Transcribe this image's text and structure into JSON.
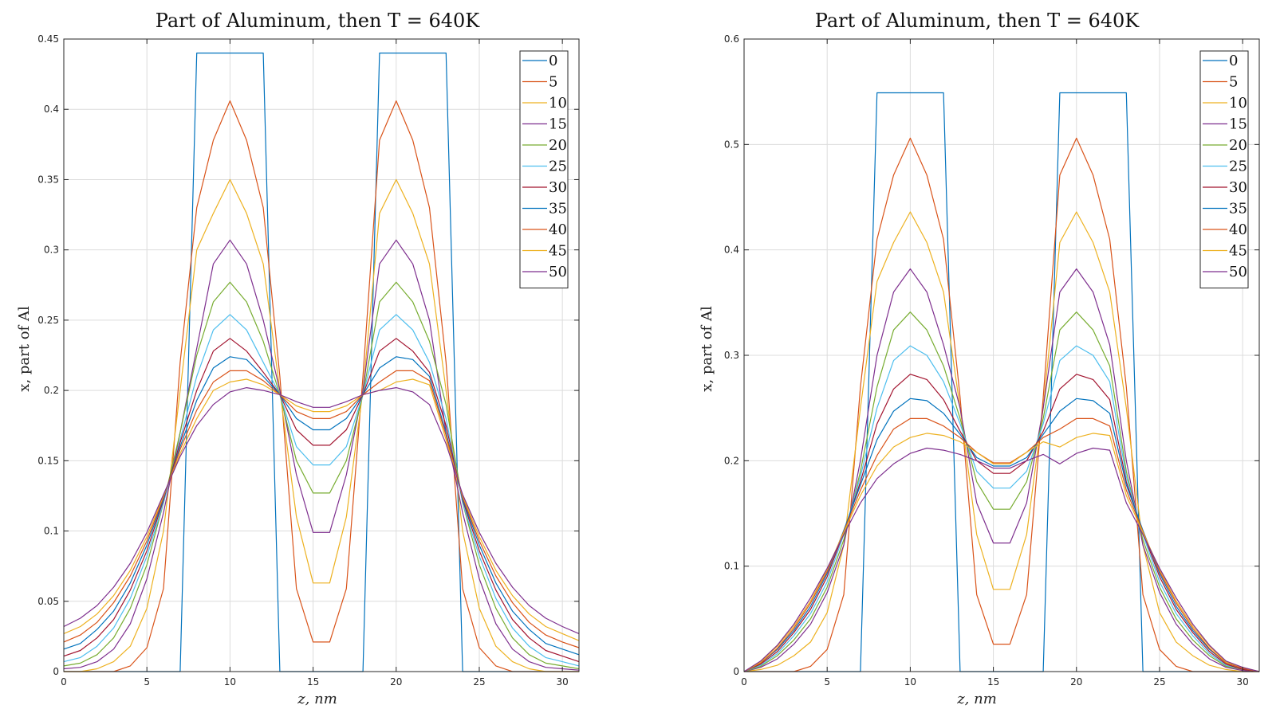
{
  "colors": [
    "#0072BD",
    "#D95319",
    "#EDB120",
    "#7E2F8E",
    "#77AC30",
    "#4DBEEE",
    "#A2142F",
    "#0072BD",
    "#D95319",
    "#EDB120",
    "#7E2F8E"
  ],
  "chart_data": [
    {
      "type": "line",
      "title": "Part of Aluminum, then T = 640K",
      "xlabel": "z, nm",
      "ylabel": "x, part of Al",
      "xlim": [
        0,
        31
      ],
      "ylim": [
        0,
        0.45
      ],
      "xticks": [
        "0",
        "5",
        "10",
        "15",
        "20",
        "25",
        "30"
      ],
      "yticks": [
        "0",
        "0.05",
        "0.1",
        "0.15",
        "0.2",
        "0.25",
        "0.3",
        "0.35",
        "0.4",
        "0.45"
      ],
      "grid": true,
      "legend_position": "top-right",
      "x": [
        0,
        1,
        2,
        3,
        4,
        5,
        6,
        7,
        8,
        9,
        10,
        11,
        12,
        13,
        14,
        15,
        16,
        17,
        18,
        19,
        20,
        21,
        22,
        23,
        24,
        25,
        26,
        27,
        28,
        29,
        30,
        31
      ],
      "series": [
        {
          "name": "0",
          "values": [
            0,
            0,
            0,
            0,
            0,
            0,
            0,
            0,
            0.44,
            0.44,
            0.44,
            0.44,
            0.44,
            0,
            0,
            0,
            0,
            0,
            0,
            0.44,
            0.44,
            0.44,
            0.44,
            0.44,
            0,
            0,
            0,
            0,
            0,
            0,
            0,
            0
          ]
        },
        {
          "name": "5",
          "values": [
            0,
            0,
            0,
            0,
            0.004,
            0.017,
            0.059,
            0.22,
            0.33,
            0.378,
            0.406,
            0.378,
            0.33,
            0.21,
            0.059,
            0.021,
            0.021,
            0.059,
            0.21,
            0.378,
            0.406,
            0.378,
            0.33,
            0.22,
            0.059,
            0.017,
            0.004,
            0,
            0,
            0,
            0,
            0
          ]
        },
        {
          "name": "10",
          "values": [
            0,
            0,
            0.002,
            0.007,
            0.018,
            0.045,
            0.1,
            0.2,
            0.3,
            0.326,
            0.35,
            0.326,
            0.29,
            0.2,
            0.11,
            0.063,
            0.063,
            0.11,
            0.2,
            0.326,
            0.35,
            0.326,
            0.29,
            0.2,
            0.1,
            0.045,
            0.018,
            0.007,
            0.002,
            0,
            0,
            0
          ]
        },
        {
          "name": "15",
          "values": [
            0.002,
            0.003,
            0.007,
            0.016,
            0.034,
            0.066,
            0.113,
            0.17,
            0.23,
            0.29,
            0.307,
            0.29,
            0.25,
            0.2,
            0.14,
            0.099,
            0.099,
            0.14,
            0.2,
            0.29,
            0.307,
            0.29,
            0.25,
            0.17,
            0.113,
            0.066,
            0.034,
            0.016,
            0.007,
            0.003,
            0.002,
            0.001
          ]
        },
        {
          "name": "20",
          "values": [
            0.004,
            0.006,
            0.012,
            0.024,
            0.045,
            0.076,
            0.12,
            0.17,
            0.225,
            0.263,
            0.277,
            0.263,
            0.235,
            0.197,
            0.15,
            0.127,
            0.127,
            0.15,
            0.197,
            0.263,
            0.277,
            0.263,
            0.235,
            0.19,
            0.12,
            0.076,
            0.045,
            0.024,
            0.012,
            0.006,
            0.004,
            0.002
          ]
        },
        {
          "name": "25",
          "values": [
            0.007,
            0.01,
            0.018,
            0.031,
            0.052,
            0.082,
            0.12,
            0.165,
            0.21,
            0.243,
            0.254,
            0.243,
            0.22,
            0.197,
            0.16,
            0.147,
            0.147,
            0.16,
            0.197,
            0.243,
            0.254,
            0.243,
            0.22,
            0.18,
            0.12,
            0.082,
            0.052,
            0.031,
            0.018,
            0.01,
            0.007,
            0.004
          ]
        },
        {
          "name": "30",
          "values": [
            0.011,
            0.015,
            0.024,
            0.037,
            0.058,
            0.086,
            0.122,
            0.163,
            0.2,
            0.228,
            0.237,
            0.228,
            0.213,
            0.197,
            0.172,
            0.161,
            0.161,
            0.172,
            0.197,
            0.228,
            0.237,
            0.228,
            0.213,
            0.175,
            0.122,
            0.086,
            0.058,
            0.037,
            0.024,
            0.015,
            0.011,
            0.007
          ]
        },
        {
          "name": "35",
          "values": [
            0.016,
            0.02,
            0.03,
            0.043,
            0.063,
            0.09,
            0.123,
            0.16,
            0.193,
            0.216,
            0.224,
            0.222,
            0.21,
            0.197,
            0.18,
            0.172,
            0.172,
            0.18,
            0.197,
            0.216,
            0.224,
            0.222,
            0.21,
            0.17,
            0.123,
            0.09,
            0.063,
            0.043,
            0.03,
            0.02,
            0.016,
            0.012
          ]
        },
        {
          "name": "40",
          "values": [
            0.021,
            0.026,
            0.035,
            0.049,
            0.068,
            0.093,
            0.124,
            0.158,
            0.186,
            0.206,
            0.214,
            0.214,
            0.207,
            0.197,
            0.185,
            0.18,
            0.18,
            0.185,
            0.197,
            0.206,
            0.214,
            0.214,
            0.207,
            0.168,
            0.124,
            0.093,
            0.068,
            0.049,
            0.035,
            0.026,
            0.021,
            0.017
          ]
        },
        {
          "name": "45",
          "values": [
            0.027,
            0.032,
            0.041,
            0.054,
            0.072,
            0.096,
            0.125,
            0.155,
            0.18,
            0.2,
            0.206,
            0.208,
            0.204,
            0.197,
            0.189,
            0.185,
            0.185,
            0.189,
            0.197,
            0.2,
            0.206,
            0.208,
            0.204,
            0.165,
            0.125,
            0.096,
            0.072,
            0.054,
            0.041,
            0.032,
            0.027,
            0.022
          ]
        },
        {
          "name": "50",
          "values": [
            0.032,
            0.038,
            0.047,
            0.06,
            0.077,
            0.099,
            0.126,
            0.153,
            0.175,
            0.19,
            0.199,
            0.202,
            0.2,
            0.197,
            0.192,
            0.188,
            0.188,
            0.192,
            0.197,
            0.2,
            0.202,
            0.199,
            0.19,
            0.162,
            0.126,
            0.099,
            0.077,
            0.06,
            0.047,
            0.038,
            0.032,
            0.027
          ]
        }
      ]
    },
    {
      "type": "line",
      "title": "Part of Aluminum, then T = 640K",
      "xlabel": "z, nm",
      "ylabel": "x, part of Al",
      "xlim": [
        0,
        31
      ],
      "ylim": [
        0,
        0.6
      ],
      "xticks": [
        "0",
        "5",
        "10",
        "15",
        "20",
        "25",
        "30"
      ],
      "yticks": [
        "0",
        "0.1",
        "0.2",
        "0.3",
        "0.4",
        "0.5",
        "0.6"
      ],
      "grid": true,
      "legend_position": "top-right",
      "x": [
        0,
        1,
        2,
        3,
        4,
        5,
        6,
        7,
        8,
        9,
        10,
        11,
        12,
        13,
        14,
        15,
        16,
        17,
        18,
        19,
        20,
        21,
        22,
        23,
        24,
        25,
        26,
        27,
        28,
        29,
        30,
        31
      ],
      "series": [
        {
          "name": "0",
          "values": [
            0,
            0,
            0,
            0,
            0,
            0,
            0,
            0,
            0.549,
            0.549,
            0.549,
            0.549,
            0.549,
            0,
            0,
            0,
            0,
            0,
            0,
            0.549,
            0.549,
            0.549,
            0.549,
            0.549,
            0,
            0,
            0,
            0,
            0,
            0,
            0,
            0
          ]
        },
        {
          "name": "5",
          "values": [
            0,
            0,
            0,
            0,
            0.005,
            0.021,
            0.073,
            0.27,
            0.41,
            0.471,
            0.506,
            0.471,
            0.41,
            0.26,
            0.073,
            0.026,
            0.026,
            0.073,
            0.26,
            0.471,
            0.506,
            0.471,
            0.41,
            0.27,
            0.073,
            0.021,
            0.005,
            0,
            0,
            0,
            0,
            0
          ]
        },
        {
          "name": "10",
          "values": [
            0,
            0.002,
            0.006,
            0.015,
            0.028,
            0.056,
            0.12,
            0.25,
            0.37,
            0.407,
            0.436,
            0.407,
            0.36,
            0.25,
            0.13,
            0.078,
            0.078,
            0.13,
            0.25,
            0.407,
            0.436,
            0.407,
            0.36,
            0.25,
            0.12,
            0.056,
            0.028,
            0.015,
            0.006,
            0.002,
            0,
            0
          ]
        },
        {
          "name": "15",
          "values": [
            0,
            0.004,
            0.012,
            0.026,
            0.045,
            0.075,
            0.12,
            0.2,
            0.3,
            0.36,
            0.382,
            0.36,
            0.31,
            0.25,
            0.16,
            0.122,
            0.122,
            0.16,
            0.25,
            0.36,
            0.382,
            0.36,
            0.31,
            0.2,
            0.12,
            0.075,
            0.045,
            0.026,
            0.012,
            0.004,
            0.001,
            0
          ]
        },
        {
          "name": "20",
          "values": [
            0,
            0.005,
            0.015,
            0.03,
            0.05,
            0.08,
            0.125,
            0.19,
            0.27,
            0.324,
            0.341,
            0.324,
            0.29,
            0.24,
            0.18,
            0.154,
            0.154,
            0.18,
            0.24,
            0.324,
            0.341,
            0.324,
            0.29,
            0.19,
            0.125,
            0.08,
            0.05,
            0.03,
            0.015,
            0.005,
            0.002,
            0
          ]
        },
        {
          "name": "25",
          "values": [
            0,
            0.006,
            0.017,
            0.034,
            0.055,
            0.085,
            0.13,
            0.185,
            0.25,
            0.295,
            0.309,
            0.3,
            0.275,
            0.235,
            0.19,
            0.174,
            0.174,
            0.19,
            0.235,
            0.295,
            0.309,
            0.3,
            0.275,
            0.185,
            0.13,
            0.085,
            0.055,
            0.034,
            0.017,
            0.006,
            0.002,
            0
          ]
        },
        {
          "name": "30",
          "values": [
            0,
            0.007,
            0.019,
            0.037,
            0.059,
            0.09,
            0.132,
            0.18,
            0.235,
            0.268,
            0.282,
            0.277,
            0.258,
            0.228,
            0.2,
            0.188,
            0.188,
            0.2,
            0.228,
            0.268,
            0.282,
            0.277,
            0.258,
            0.18,
            0.132,
            0.09,
            0.059,
            0.037,
            0.019,
            0.007,
            0.002,
            0
          ]
        },
        {
          "name": "35",
          "values": [
            0,
            0.008,
            0.021,
            0.039,
            0.062,
            0.093,
            0.134,
            0.177,
            0.22,
            0.247,
            0.259,
            0.257,
            0.245,
            0.225,
            0.203,
            0.195,
            0.195,
            0.203,
            0.225,
            0.247,
            0.259,
            0.257,
            0.245,
            0.177,
            0.134,
            0.093,
            0.062,
            0.039,
            0.021,
            0.008,
            0.003,
            0
          ]
        },
        {
          "name": "40",
          "values": [
            0,
            0.008,
            0.022,
            0.041,
            0.065,
            0.095,
            0.133,
            0.172,
            0.205,
            0.23,
            0.24,
            0.24,
            0.233,
            0.222,
            0.208,
            0.198,
            0.198,
            0.208,
            0.222,
            0.23,
            0.24,
            0.24,
            0.233,
            0.172,
            0.133,
            0.095,
            0.065,
            0.041,
            0.022,
            0.008,
            0.003,
            0
          ]
        },
        {
          "name": "45",
          "values": [
            0,
            0.009,
            0.024,
            0.043,
            0.067,
            0.097,
            0.132,
            0.167,
            0.195,
            0.213,
            0.222,
            0.226,
            0.224,
            0.218,
            0.208,
            0.197,
            0.197,
            0.208,
            0.218,
            0.213,
            0.222,
            0.226,
            0.224,
            0.167,
            0.132,
            0.097,
            0.067,
            0.043,
            0.024,
            0.009,
            0.004,
            0
          ]
        },
        {
          "name": "50",
          "values": [
            0,
            0.01,
            0.025,
            0.045,
            0.07,
            0.098,
            0.13,
            0.16,
            0.183,
            0.197,
            0.207,
            0.212,
            0.21,
            0.206,
            0.2,
            0.193,
            0.193,
            0.2,
            0.206,
            0.197,
            0.207,
            0.212,
            0.21,
            0.16,
            0.13,
            0.098,
            0.07,
            0.045,
            0.025,
            0.01,
            0.004,
            0
          ]
        }
      ]
    }
  ]
}
